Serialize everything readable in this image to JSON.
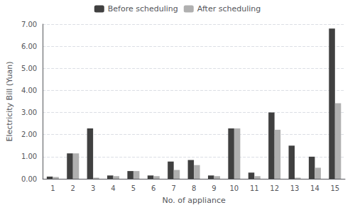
{
  "chart_data": {
    "type": "bar",
    "xlabel": "No. of appliance",
    "ylabel": "Electricity Bill (Yuan)",
    "categories": [
      1,
      2,
      3,
      4,
      5,
      6,
      7,
      8,
      9,
      10,
      11,
      12,
      13,
      14,
      15
    ],
    "series": [
      {
        "name": "Before scheduling",
        "color": "#404040",
        "values": [
          0.1,
          1.15,
          2.28,
          0.15,
          0.35,
          0.15,
          0.78,
          0.85,
          0.15,
          2.28,
          0.28,
          3.0,
          1.5,
          1.0,
          6.8
        ]
      },
      {
        "name": "After scheduling",
        "color": "#b0b0b0",
        "values": [
          0.08,
          1.15,
          0.05,
          0.12,
          0.35,
          0.12,
          0.4,
          0.62,
          0.12,
          2.28,
          0.12,
          2.22,
          0.05,
          0.5,
          3.42
        ]
      }
    ],
    "ylim": [
      0,
      7.0
    ],
    "yticks": [
      {
        "value": 0,
        "label": "0.00"
      },
      {
        "value": 1,
        "label": "1.00"
      },
      {
        "value": 2,
        "label": "2.00"
      },
      {
        "value": 3,
        "label": "3.00"
      },
      {
        "value": 4,
        "label": "4.00"
      },
      {
        "value": 5,
        "label": "5.00"
      },
      {
        "value": 6,
        "label": "6.00"
      },
      {
        "value": 7,
        "label": "7.00"
      }
    ],
    "grid": true,
    "legend": "top"
  }
}
